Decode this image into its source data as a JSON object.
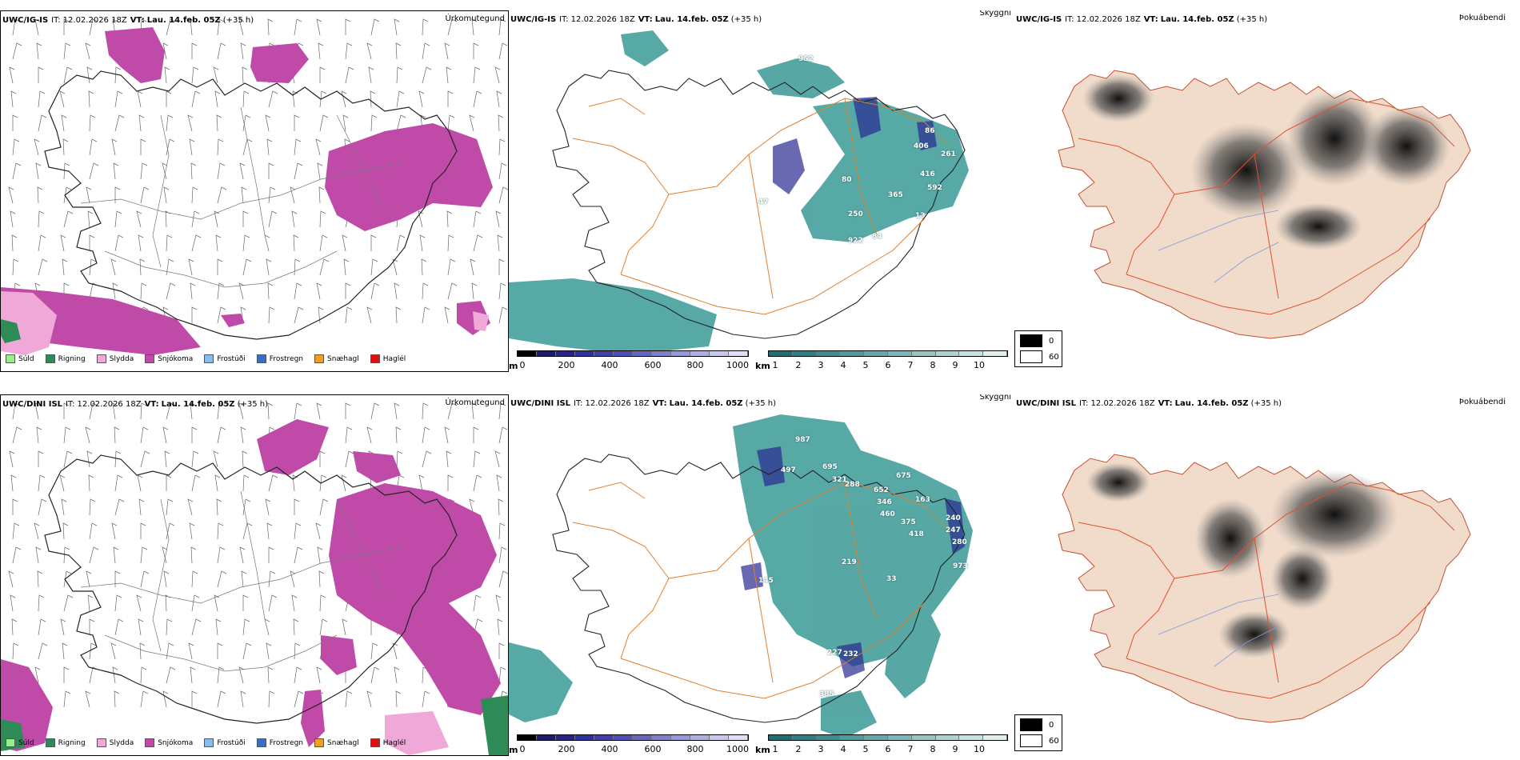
{
  "rows": [
    {
      "precip": {
        "model": "UWC/IG-IS",
        "it_label": "IT: 12.02.2026 18Z",
        "vt_key": "VT:",
        "vt_value": "Lau. 14.feb. 05Z",
        "lead": "(+35 h)",
        "title": "Úrkomutegund"
      },
      "cloud": {
        "model": "UWC/IG-IS",
        "it_label": "IT: 12.02.2026 18Z",
        "vt_key": "VT:",
        "vt_value": "Lau. 14.feb. 05Z",
        "lead": "(+35 h)",
        "title": "Skyggni",
        "labels": [
          "952",
          "86",
          "406",
          "261",
          "416",
          "592",
          "80",
          "365",
          "13",
          "250",
          "922",
          "84",
          "47"
        ]
      },
      "fog": {
        "model": "UWC/IG-IS",
        "it_label": "IT: 12.02.2026 18Z",
        "vt_key": "VT:",
        "vt_value": "Lau. 14.feb. 05Z",
        "lead": "(+35 h)",
        "title": "Þokuábendi"
      }
    },
    {
      "precip": {
        "model": "UWC/DINI ISL",
        "it_label": "IT: 12.02.2026 18Z",
        "vt_key": "VT:",
        "vt_value": "Lau. 14.feb. 05Z",
        "lead": "(+35 h)",
        "title": "Úrkomutegund"
      },
      "cloud": {
        "model": "UWC/DINI ISL",
        "it_label": "IT: 12.02.2026 18Z",
        "vt_key": "VT:",
        "vt_value": "Lau. 14.feb. 05Z",
        "lead": "(+35 h)",
        "title": "Skyggni",
        "labels": [
          "987",
          "695",
          "497",
          "321",
          "288",
          "652",
          "675",
          "346",
          "163",
          "460",
          "375",
          "240",
          "418",
          "247",
          "280",
          "973",
          "219",
          "33",
          "145",
          "227",
          "232",
          "385"
        ]
      },
      "fog": {
        "model": "UWC/DINI ISL",
        "it_label": "IT: 12.02.2026 18Z",
        "vt_key": "VT:",
        "vt_value": "Lau. 14.feb. 05Z",
        "lead": "(+35 h)",
        "title": "Þokuábendi"
      }
    }
  ],
  "precip_legend": [
    {
      "label": "Súld",
      "color": "#99ee88"
    },
    {
      "label": "Rigning",
      "color": "#2e8b57"
    },
    {
      "label": "Slydda",
      "color": "#f0a8d8"
    },
    {
      "label": "Snjókoma",
      "color": "#c04aa8"
    },
    {
      "label": "Frostúði",
      "color": "#88bbee"
    },
    {
      "label": "Frostregn",
      "color": "#3a6ec0"
    },
    {
      "label": "Snæhagl",
      "color": "#f0a020"
    },
    {
      "label": "Haglél",
      "color": "#e01010"
    }
  ],
  "cloud_base_bar": {
    "unit": "m",
    "ticks": [
      "0",
      "200",
      "400",
      "600",
      "800",
      "1000"
    ],
    "colors": [
      "#000000",
      "#1a1a70",
      "#24248a",
      "#30309a",
      "#4040a8",
      "#5050b4",
      "#6666c0",
      "#8080cc",
      "#9898d6",
      "#b0b0e0",
      "#c8c8ea",
      "#e0e0f4"
    ]
  },
  "visibility_bar": {
    "unit": "km",
    "ticks": [
      "1",
      "2",
      "3",
      "4",
      "5",
      "6",
      "7",
      "8",
      "9",
      "10"
    ],
    "colors": [
      "#1e7070",
      "#2e8080",
      "#3e8c8c",
      "#549a9a",
      "#6aa8a8",
      "#80b6b6",
      "#98c4c4",
      "#b0d2d2",
      "#c8e0e0",
      "#e0eeee"
    ]
  },
  "fog_legend": [
    {
      "value": "0",
      "color": "#000000"
    },
    {
      "value": "60",
      "color": "#ffffff"
    }
  ],
  "map_colors": {
    "snow": "#c04aa8",
    "rain": "#2e8b57",
    "sleet": "#f0a8d8",
    "drizzle": "#99ee88",
    "teal": "#3a9a96",
    "cloudbase": "#2a2a90",
    "roads": "#e08030",
    "land_fog": "#f1dccb",
    "fog_roads": "#e05030",
    "rivers": "#7f9bdc"
  }
}
